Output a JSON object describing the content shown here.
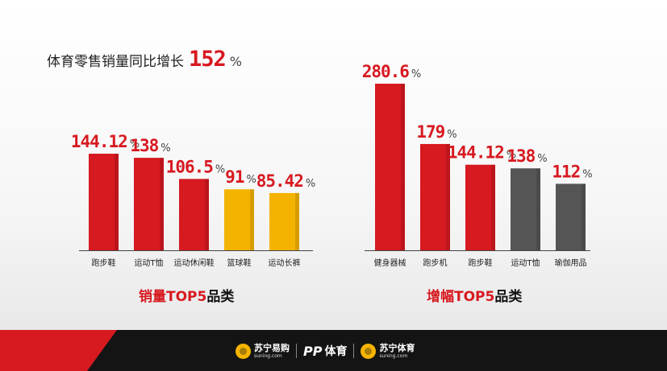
{
  "headline": {
    "text": "体育零售销量同比增长",
    "value": "152",
    "unit": "%"
  },
  "chart_data": [
    {
      "type": "bar",
      "title": "销量TOP5品类",
      "title_red": "销量TOP5",
      "title_black": "品类",
      "categories": [
        "跑步鞋",
        "运动T恤",
        "运动休闲鞋",
        "篮球鞋",
        "运动长裤"
      ],
      "values": [
        144.12,
        138,
        106.5,
        91,
        85.42
      ],
      "labels": [
        "144.12",
        "138",
        "106.5",
        "91",
        "85.42"
      ],
      "colors": [
        "#d71920",
        "#d71920",
        "#d71920",
        "#f4b300",
        "#f4b300"
      ],
      "unit": "%"
    },
    {
      "type": "bar",
      "title": "增幅TOP5品类",
      "title_red": "增幅TOP5",
      "title_black": "品类",
      "categories": [
        "健身器械",
        "跑步机",
        "跑步鞋",
        "运动T恤",
        "瑜伽用品"
      ],
      "values": [
        280.6,
        179,
        144.12,
        138,
        112
      ],
      "labels": [
        "280.6",
        "179",
        "144.12",
        "138",
        "112"
      ],
      "colors": [
        "#d71920",
        "#d71920",
        "#d71920",
        "#555555",
        "#555555"
      ],
      "unit": "%"
    }
  ],
  "footer": {
    "logo1_cn": "苏宁易购",
    "logo1_en": "suning.com",
    "logo2_mark": "PP",
    "logo2_cn": "体育",
    "logo3_cn": "苏宁体育",
    "logo3_en": "suning.com"
  }
}
